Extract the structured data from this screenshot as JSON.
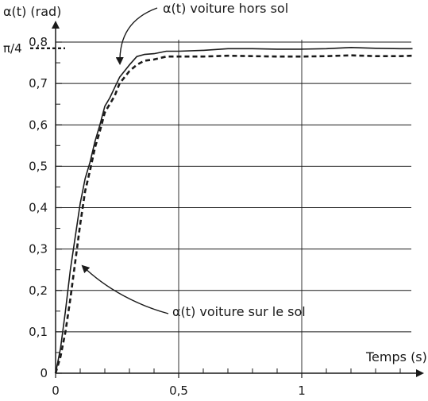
{
  "chart_data": {
    "type": "line",
    "ylabel": "α(t) (rad)",
    "xlabel": "Temps (s)",
    "xlim": [
      0,
      1.45
    ],
    "ylim": [
      0,
      0.8
    ],
    "grid": true,
    "x_ticks": [
      {
        "value": 0,
        "label": "0"
      },
      {
        "value": 0.5,
        "label": "0,5"
      },
      {
        "value": 1,
        "label": "1"
      }
    ],
    "y_ticks": [
      {
        "value": 0,
        "label": "0"
      },
      {
        "value": 0.1,
        "label": "0,1"
      },
      {
        "value": 0.2,
        "label": "0,2"
      },
      {
        "value": 0.3,
        "label": "0,3"
      },
      {
        "value": 0.4,
        "label": "0,4"
      },
      {
        "value": 0.5,
        "label": "0,5"
      },
      {
        "value": 0.6,
        "label": "0,6"
      },
      {
        "value": 0.7,
        "label": "0,7"
      },
      {
        "value": 0.8,
        "label": "0,8"
      }
    ],
    "reference_line": {
      "label": "π/4",
      "value": 0.785
    },
    "series": [
      {
        "name": "α(t) voiture hors sol",
        "style": "solid",
        "color": "#1a1a1a",
        "x": [
          0,
          0.02,
          0.04,
          0.06,
          0.08,
          0.1,
          0.12,
          0.14,
          0.16,
          0.18,
          0.2,
          0.22,
          0.24,
          0.26,
          0.28,
          0.3,
          0.33,
          0.36,
          0.4,
          0.45,
          0.5,
          0.6,
          0.7,
          0.8,
          0.9,
          1.0,
          1.1,
          1.2,
          1.3,
          1.4,
          1.45
        ],
        "y": [
          0,
          0.06,
          0.15,
          0.25,
          0.33,
          0.41,
          0.47,
          0.51,
          0.56,
          0.6,
          0.645,
          0.665,
          0.69,
          0.715,
          0.73,
          0.745,
          0.765,
          0.77,
          0.772,
          0.778,
          0.778,
          0.78,
          0.784,
          0.784,
          0.783,
          0.783,
          0.784,
          0.787,
          0.785,
          0.784,
          0.784
        ]
      },
      {
        "name": "α(t) voiture sur le sol",
        "style": "dashed",
        "color": "#1a1a1a",
        "x": [
          0,
          0.02,
          0.04,
          0.06,
          0.08,
          0.1,
          0.12,
          0.14,
          0.16,
          0.18,
          0.2,
          0.22,
          0.24,
          0.26,
          0.28,
          0.3,
          0.33,
          0.36,
          0.4,
          0.45,
          0.5,
          0.6,
          0.7,
          0.8,
          0.9,
          1.0,
          1.1,
          1.2,
          1.3,
          1.4,
          1.45
        ],
        "y": [
          0,
          0.04,
          0.1,
          0.18,
          0.27,
          0.36,
          0.44,
          0.49,
          0.545,
          0.585,
          0.63,
          0.65,
          0.67,
          0.7,
          0.715,
          0.73,
          0.745,
          0.755,
          0.758,
          0.765,
          0.765,
          0.765,
          0.767,
          0.766,
          0.765,
          0.765,
          0.766,
          0.768,
          0.766,
          0.766,
          0.767
        ]
      }
    ],
    "annotations": [
      {
        "text": "α(t) voiture hors sol",
        "target_series": 0
      },
      {
        "text": "α(t) voiture sur le sol",
        "target_series": 1
      }
    ]
  }
}
